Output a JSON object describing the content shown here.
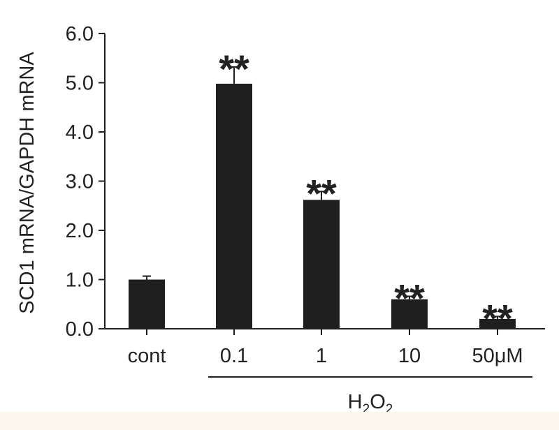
{
  "chart_data": {
    "type": "bar",
    "categories": [
      "cont",
      "0.1",
      "1",
      "10",
      "50μM"
    ],
    "values": [
      1.0,
      4.98,
      2.62,
      0.6,
      0.2
    ],
    "errors": [
      0.07,
      0.34,
      0.17,
      0.06,
      0.05
    ],
    "significance": [
      "",
      "**",
      "**",
      "**",
      "**"
    ],
    "ylabel": "SCD1 mRNA/GAPDH mRNA",
    "ylim": [
      0,
      6.0
    ],
    "yticks": [
      "0.0",
      "1.0",
      "2.0",
      "3.0",
      "4.0",
      "5.0",
      "6.0"
    ],
    "group_label": {
      "base": "H",
      "sub1": "2",
      "mid": "O",
      "sub2": "2"
    },
    "grid": false,
    "legend": "none",
    "bar_color": "#1f1f1f"
  }
}
